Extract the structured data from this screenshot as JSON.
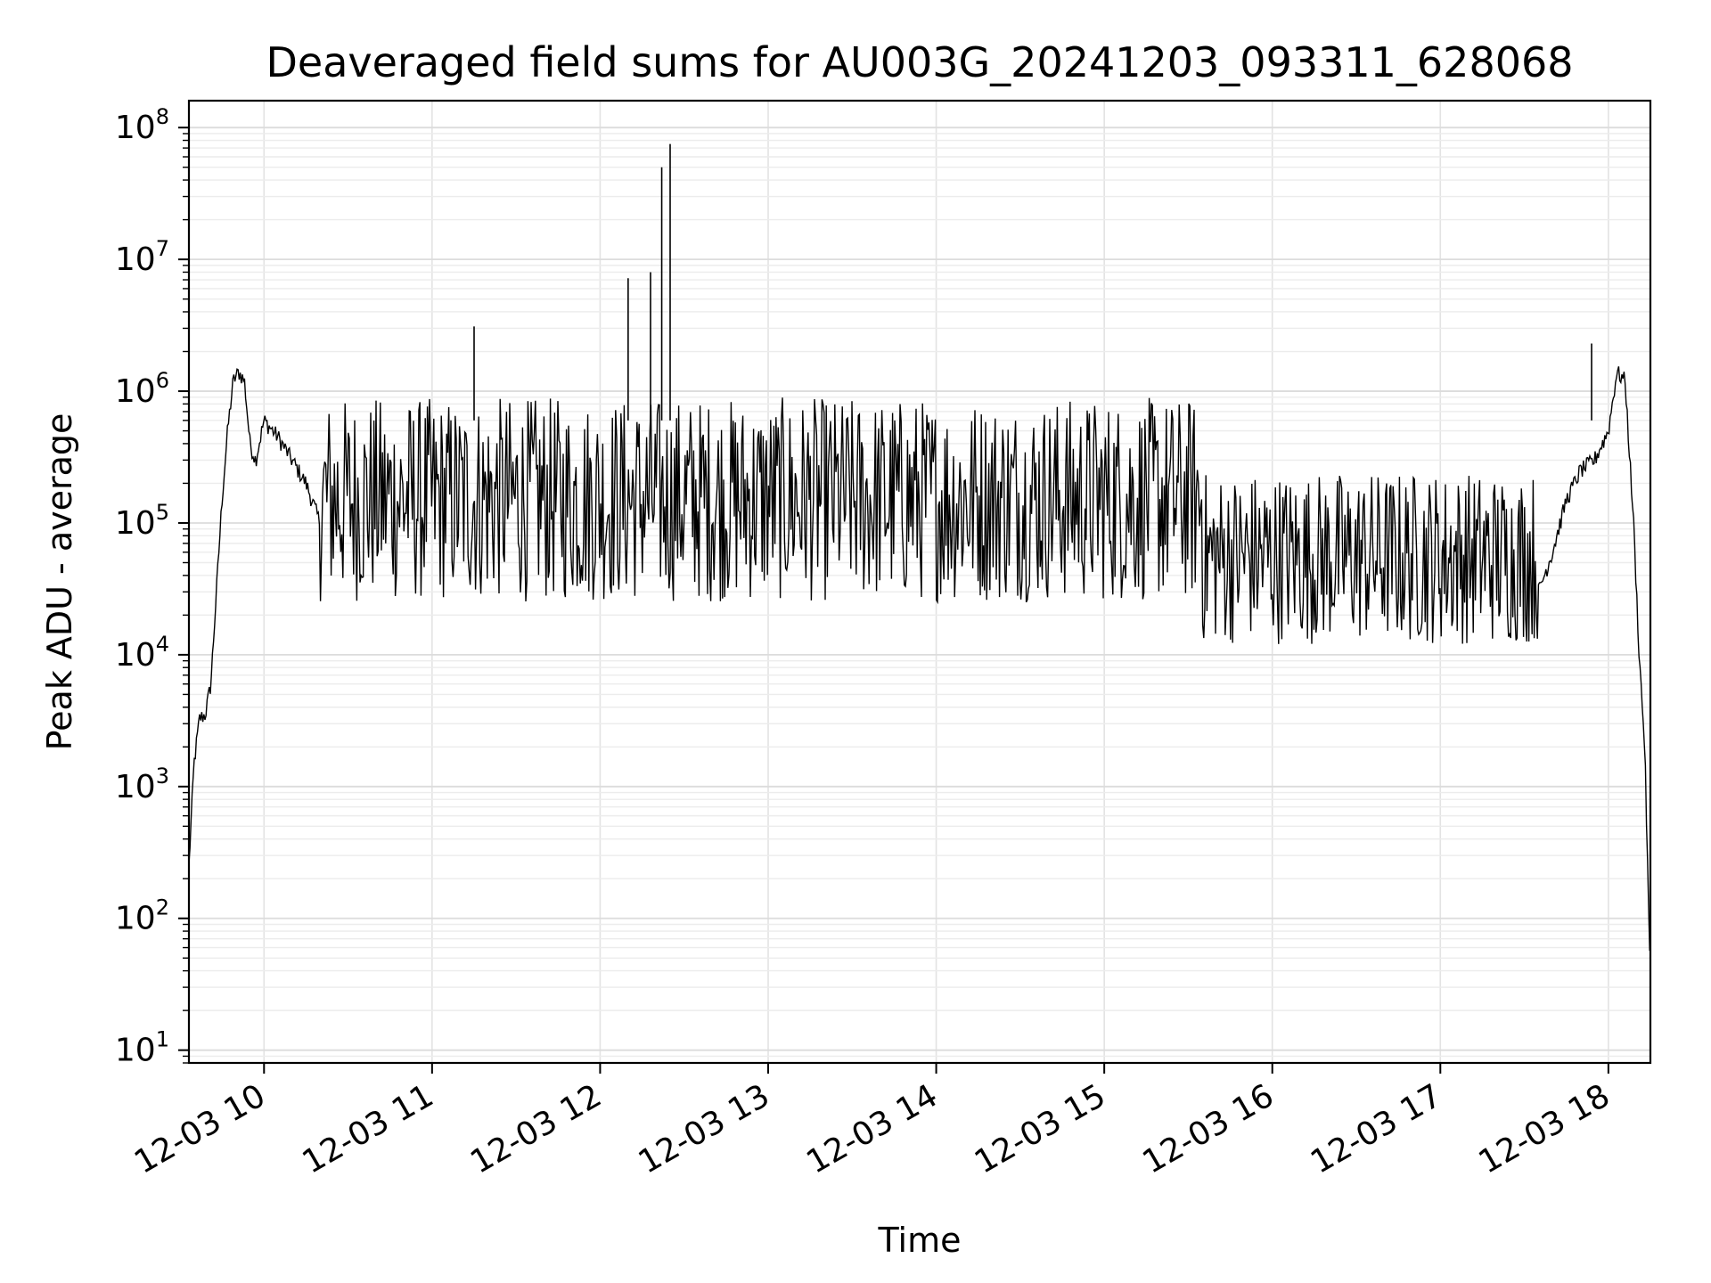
{
  "chart_data": {
    "type": "line",
    "title": "Deaveraged field sums for AU003G_20241203_093311_628068",
    "xlabel": "Time",
    "ylabel": "Peak ADU - average",
    "yscale": "log",
    "ylim": [
      8,
      160000000
    ],
    "xlim": [
      "2024-12-03T09:33:11",
      "2024-12-03T18:15:00"
    ],
    "grid": true,
    "line_color": "#000000",
    "x_ticks": [
      {
        "label": "12-03 10",
        "value": "2024-12-03T10:00:00"
      },
      {
        "label": "12-03 11",
        "value": "2024-12-03T11:00:00"
      },
      {
        "label": "12-03 12",
        "value": "2024-12-03T12:00:00"
      },
      {
        "label": "12-03 13",
        "value": "2024-12-03T13:00:00"
      },
      {
        "label": "12-03 14",
        "value": "2024-12-03T14:00:00"
      },
      {
        "label": "12-03 15",
        "value": "2024-12-03T15:00:00"
      },
      {
        "label": "12-03 16",
        "value": "2024-12-03T16:00:00"
      },
      {
        "label": "12-03 17",
        "value": "2024-12-03T17:00:00"
      },
      {
        "label": "12-03 18",
        "value": "2024-12-03T18:00:00"
      }
    ],
    "y_ticks": [
      {
        "base": "10",
        "exp": "1",
        "value": 10
      },
      {
        "base": "10",
        "exp": "2",
        "value": 100
      },
      {
        "base": "10",
        "exp": "3",
        "value": 1000
      },
      {
        "base": "10",
        "exp": "4",
        "value": 10000
      },
      {
        "base": "10",
        "exp": "5",
        "value": 100000
      },
      {
        "base": "10",
        "exp": "6",
        "value": 1000000
      },
      {
        "base": "10",
        "exp": "7",
        "value": 10000000
      },
      {
        "base": "10",
        "exp": "8",
        "value": 100000000
      }
    ],
    "series": [
      {
        "x": [
          "2024-12-03T09:33:11",
          "2024-12-03T09:35:00",
          "2024-12-03T09:37:00",
          "2024-12-03T09:39:00",
          "2024-12-03T09:41:00",
          "2024-12-03T09:43:00",
          "2024-12-03T09:45:00",
          "2024-12-03T09:47:00",
          "2024-12-03T09:49:00",
          "2024-12-03T09:51:00",
          "2024-12-03T09:53:00",
          "2024-12-03T09:55:00",
          "2024-12-03T09:57:00",
          "2024-12-03T10:00:00",
          "2024-12-03T10:05:00",
          "2024-12-03T10:10:00",
          "2024-12-03T10:15:00",
          "2024-12-03T10:20:00",
          "2024-12-03T10:25:00",
          "2024-12-03T10:30:00",
          "2024-12-03T10:45:00",
          "2024-12-03T11:00:00",
          "2024-12-03T11:15:00",
          "2024-12-03T11:30:00",
          "2024-12-03T11:45:00",
          "2024-12-03T12:00:00",
          "2024-12-03T12:15:00",
          "2024-12-03T12:30:00",
          "2024-12-03T12:45:00",
          "2024-12-03T13:00:00",
          "2024-12-03T13:15:00",
          "2024-12-03T13:30:00",
          "2024-12-03T13:45:00",
          "2024-12-03T14:00:00",
          "2024-12-03T14:15:00",
          "2024-12-03T14:30:00",
          "2024-12-03T14:45:00",
          "2024-12-03T15:00:00",
          "2024-12-03T15:15:00",
          "2024-12-03T15:30:00",
          "2024-12-03T15:40:00",
          "2024-12-03T15:50:00",
          "2024-12-03T16:00:00",
          "2024-12-03T16:10:00",
          "2024-12-03T16:20:00",
          "2024-12-03T16:40:00",
          "2024-12-03T17:00:00",
          "2024-12-03T17:20:00",
          "2024-12-03T17:30:00",
          "2024-12-03T17:35:00",
          "2024-12-03T17:40:00",
          "2024-12-03T17:45:00",
          "2024-12-03T17:50:00",
          "2024-12-03T17:55:00",
          "2024-12-03T18:00:00",
          "2024-12-03T18:03:00",
          "2024-12-03T18:06:00",
          "2024-12-03T18:09:00",
          "2024-12-03T18:11:00",
          "2024-12-03T18:13:00",
          "2024-12-03T18:15:00"
        ],
        "y": [
          250,
          1500,
          3300,
          3500,
          6000,
          30000,
          150000,
          500000,
          1200000,
          1400000,
          1200000,
          400000,
          300000,
          600000,
          450000,
          300000,
          200000,
          100000,
          60000,
          40000,
          120000,
          150000,
          130000,
          140000,
          80000,
          150000,
          180000,
          250000,
          200000,
          200000,
          180000,
          150000,
          130000,
          110000,
          120000,
          130000,
          150000,
          140000,
          160000,
          180000,
          40000,
          25000,
          15000,
          10000,
          12000,
          20000,
          30000,
          40000,
          25000,
          30000,
          60000,
          150000,
          250000,
          300000,
          500000,
          1400000,
          1200000,
          100000,
          10000,
          2000,
          30
        ]
      }
    ],
    "spikes": [
      {
        "x": "2024-12-03T11:15:00",
        "y": 3100000
      },
      {
        "x": "2024-12-03T12:10:00",
        "y": 7200000
      },
      {
        "x": "2024-12-03T12:18:00",
        "y": 8000000
      },
      {
        "x": "2024-12-03T12:22:00",
        "y": 50000000
      },
      {
        "x": "2024-12-03T12:25:00",
        "y": 75000000
      },
      {
        "x": "2024-12-03T17:54:00",
        "y": 2300000
      }
    ]
  }
}
